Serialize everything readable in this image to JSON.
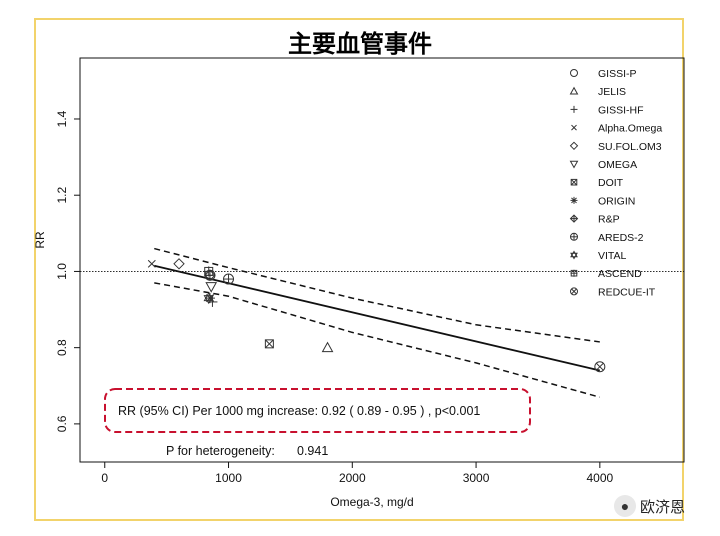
{
  "chart_data": {
    "type": "scatter",
    "title": "主要血管事件",
    "xlabel": "Omega-3, mg/d",
    "ylabel": "RR",
    "xlim": [
      -200,
      4680
    ],
    "ylim": [
      0.5,
      1.56
    ],
    "x_ticks": [
      0,
      1000,
      2000,
      3000,
      4000
    ],
    "y_ticks": [
      0.6,
      0.8,
      1.0,
      1.2,
      1.4
    ],
    "x_tick_labels": [
      "0",
      "1000",
      "2000",
      "3000",
      "4000"
    ],
    "y_tick_labels": [
      "0.6",
      "0.8",
      "1.0",
      "1.2",
      "1.4"
    ],
    "reference_line": 1.0,
    "regression": {
      "x": [
        400,
        4000
      ],
      "y": [
        1.015,
        0.74
      ]
    },
    "ci_upper": {
      "x": [
        400,
        1000,
        2000,
        3000,
        4000
      ],
      "y": [
        1.06,
        1.01,
        0.93,
        0.86,
        0.815
      ]
    },
    "ci_lower": {
      "x": [
        400,
        1000,
        2000,
        3000,
        4000
      ],
      "y": [
        0.97,
        0.935,
        0.84,
        0.76,
        0.67
      ]
    },
    "legend_position": "top-right",
    "series": [
      {
        "name": "GISSI-P",
        "marker": "circle",
        "points": [
          [
            850,
            0.99
          ]
        ]
      },
      {
        "name": "JELIS",
        "marker": "triangle-up",
        "points": [
          [
            1800,
            0.8
          ]
        ]
      },
      {
        "name": "GISSI-HF",
        "marker": "plus",
        "points": [
          [
            870,
            0.92
          ]
        ]
      },
      {
        "name": "Alpha.Omega",
        "marker": "x",
        "points": [
          [
            380,
            1.02
          ]
        ]
      },
      {
        "name": "SU.FOL.OM3",
        "marker": "diamond",
        "points": [
          [
            600,
            1.02
          ]
        ]
      },
      {
        "name": "OMEGA",
        "marker": "triangle-down",
        "points": [
          [
            860,
            0.96
          ]
        ]
      },
      {
        "name": "DOIT",
        "marker": "box-x",
        "points": [
          [
            1330,
            0.81
          ]
        ]
      },
      {
        "name": "ORIGIN",
        "marker": "asterisk",
        "points": [
          [
            850,
            0.93
          ]
        ]
      },
      {
        "name": "R&P",
        "marker": "diamond-plus",
        "points": [
          [
            850,
            0.99
          ]
        ]
      },
      {
        "name": "AREDS-2",
        "marker": "circle-plus",
        "points": [
          [
            1000,
            0.98
          ]
        ]
      },
      {
        "name": "VITAL",
        "marker": "star-of-david",
        "points": [
          [
            840,
            0.93
          ]
        ]
      },
      {
        "name": "ASCEND",
        "marker": "box-plus",
        "points": [
          [
            840,
            1.0
          ]
        ]
      },
      {
        "name": "REDCUE-IT",
        "marker": "circle-x",
        "points": [
          [
            4000,
            0.75
          ]
        ]
      }
    ],
    "annotations": {
      "rr_text": "RR (95% CI) Per 1000 mg increase: 0.92 ( 0.89 - 0.95 ) , p<0.001",
      "heterogeneity_label": "P for heterogeneity:",
      "heterogeneity_value": "0.941"
    },
    "colors": {
      "frame": "#f2d36b",
      "annotation_box": "#c8102e",
      "ink": "#111111"
    }
  },
  "watermark": {
    "icon": "wechat-icon",
    "text": "欧济恩"
  }
}
